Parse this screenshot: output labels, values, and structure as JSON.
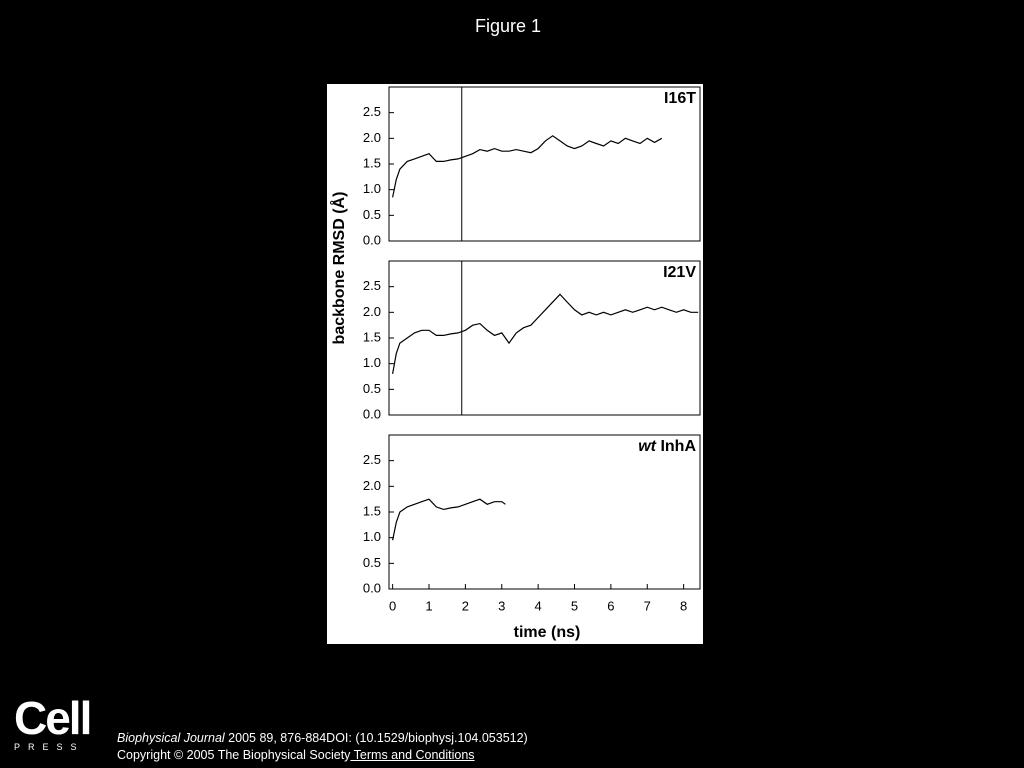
{
  "page": {
    "title": "Figure 1"
  },
  "logo": {
    "name": "Cell",
    "sub": "PRESS"
  },
  "footer": {
    "journal": "Biophysical Journal",
    "citation": " 2005 89, 876-884DOI: (10.1529/biophysj.104.053512)",
    "copyright": "Copyright © 2005 The Biophysical Society",
    "link": " Terms and Conditions"
  },
  "chart_data": [
    {
      "type": "line",
      "annotation": {
        "text": "I16T"
      },
      "color": "#000000",
      "xlim": [
        -0.1,
        8.45
      ],
      "ylim": [
        0,
        3.0
      ],
      "yticks": [
        {
          "value": 0,
          "label": "0.0"
        },
        0.5,
        {
          "value": 1,
          "label": "1.0"
        },
        1.5,
        {
          "value": 2,
          "label": "2.0"
        },
        2.5
      ],
      "vlines": [
        1.9
      ],
      "x": [
        0,
        0.1,
        0.2,
        0.4,
        0.6,
        0.8,
        1.0,
        1.2,
        1.4,
        1.6,
        1.8,
        2.0,
        2.2,
        2.4,
        2.6,
        2.8,
        3.0,
        3.2,
        3.4,
        3.6,
        3.8,
        4.0,
        4.2,
        4.4,
        4.6,
        4.8,
        5.0,
        5.2,
        5.4,
        5.6,
        5.8,
        6.0,
        6.2,
        6.4,
        6.6,
        6.8,
        7.0,
        7.2,
        7.4
      ],
      "values": [
        0.85,
        1.2,
        1.4,
        1.55,
        1.6,
        1.65,
        1.7,
        1.55,
        1.55,
        1.58,
        1.6,
        1.65,
        1.7,
        1.78,
        1.75,
        1.8,
        1.75,
        1.75,
        1.78,
        1.75,
        1.72,
        1.8,
        1.95,
        2.05,
        1.95,
        1.85,
        1.8,
        1.85,
        1.95,
        1.9,
        1.85,
        1.95,
        1.9,
        2.0,
        1.95,
        1.9,
        2.0,
        1.92,
        2.0
      ]
    },
    {
      "type": "line",
      "annotation": {
        "text": "I21V"
      },
      "color": "#000000",
      "ylabel": "backbone RMSD (Å)",
      "xlim": [
        -0.1,
        8.45
      ],
      "ylim": [
        0,
        3.0
      ],
      "yticks": [
        {
          "value": 0,
          "label": "0.0"
        },
        0.5,
        {
          "value": 1,
          "label": "1.0"
        },
        1.5,
        {
          "value": 2,
          "label": "2.0"
        },
        2.5
      ],
      "vlines": [
        1.9
      ],
      "x": [
        0,
        0.1,
        0.2,
        0.4,
        0.6,
        0.8,
        1.0,
        1.2,
        1.4,
        1.6,
        1.8,
        2.0,
        2.2,
        2.4,
        2.6,
        2.8,
        3.0,
        3.2,
        3.4,
        3.6,
        3.8,
        4.0,
        4.2,
        4.4,
        4.6,
        4.8,
        5.0,
        5.2,
        5.4,
        5.6,
        5.8,
        6.0,
        6.2,
        6.4,
        6.6,
        6.8,
        7.0,
        7.2,
        7.4,
        7.6,
        7.8,
        8.0,
        8.2,
        8.4
      ],
      "values": [
        0.8,
        1.2,
        1.4,
        1.5,
        1.6,
        1.65,
        1.65,
        1.55,
        1.55,
        1.58,
        1.6,
        1.65,
        1.75,
        1.78,
        1.65,
        1.55,
        1.6,
        1.4,
        1.6,
        1.7,
        1.75,
        1.9,
        2.05,
        2.2,
        2.35,
        2.2,
        2.05,
        1.95,
        2.0,
        1.95,
        2.0,
        1.95,
        2.0,
        2.05,
        2.0,
        2.05,
        2.1,
        2.05,
        2.1,
        2.05,
        2.0,
        2.05,
        2.0,
        2.0
      ]
    },
    {
      "type": "line",
      "annotation": {
        "italic": "wt",
        "text": "InhA"
      },
      "color": "#000000",
      "xlabel": "time (ns)",
      "xlim": [
        -0.1,
        8.45
      ],
      "xticks": [
        0,
        1,
        2,
        3,
        4,
        5,
        6,
        7,
        8
      ],
      "ylim": [
        0,
        3.0
      ],
      "yticks": [
        {
          "value": 0,
          "label": "0.0"
        },
        0.5,
        {
          "value": 1,
          "label": "1.0"
        },
        1.5,
        {
          "value": 2,
          "label": "2.0"
        },
        2.5
      ],
      "x": [
        0,
        0.1,
        0.2,
        0.4,
        0.6,
        0.8,
        1.0,
        1.2,
        1.4,
        1.6,
        1.8,
        2.0,
        2.2,
        2.4,
        2.6,
        2.8,
        3.0,
        3.1
      ],
      "values": [
        0.95,
        1.3,
        1.5,
        1.6,
        1.65,
        1.7,
        1.75,
        1.6,
        1.55,
        1.58,
        1.6,
        1.65,
        1.7,
        1.75,
        1.65,
        1.7,
        1.7,
        1.65
      ]
    }
  ]
}
